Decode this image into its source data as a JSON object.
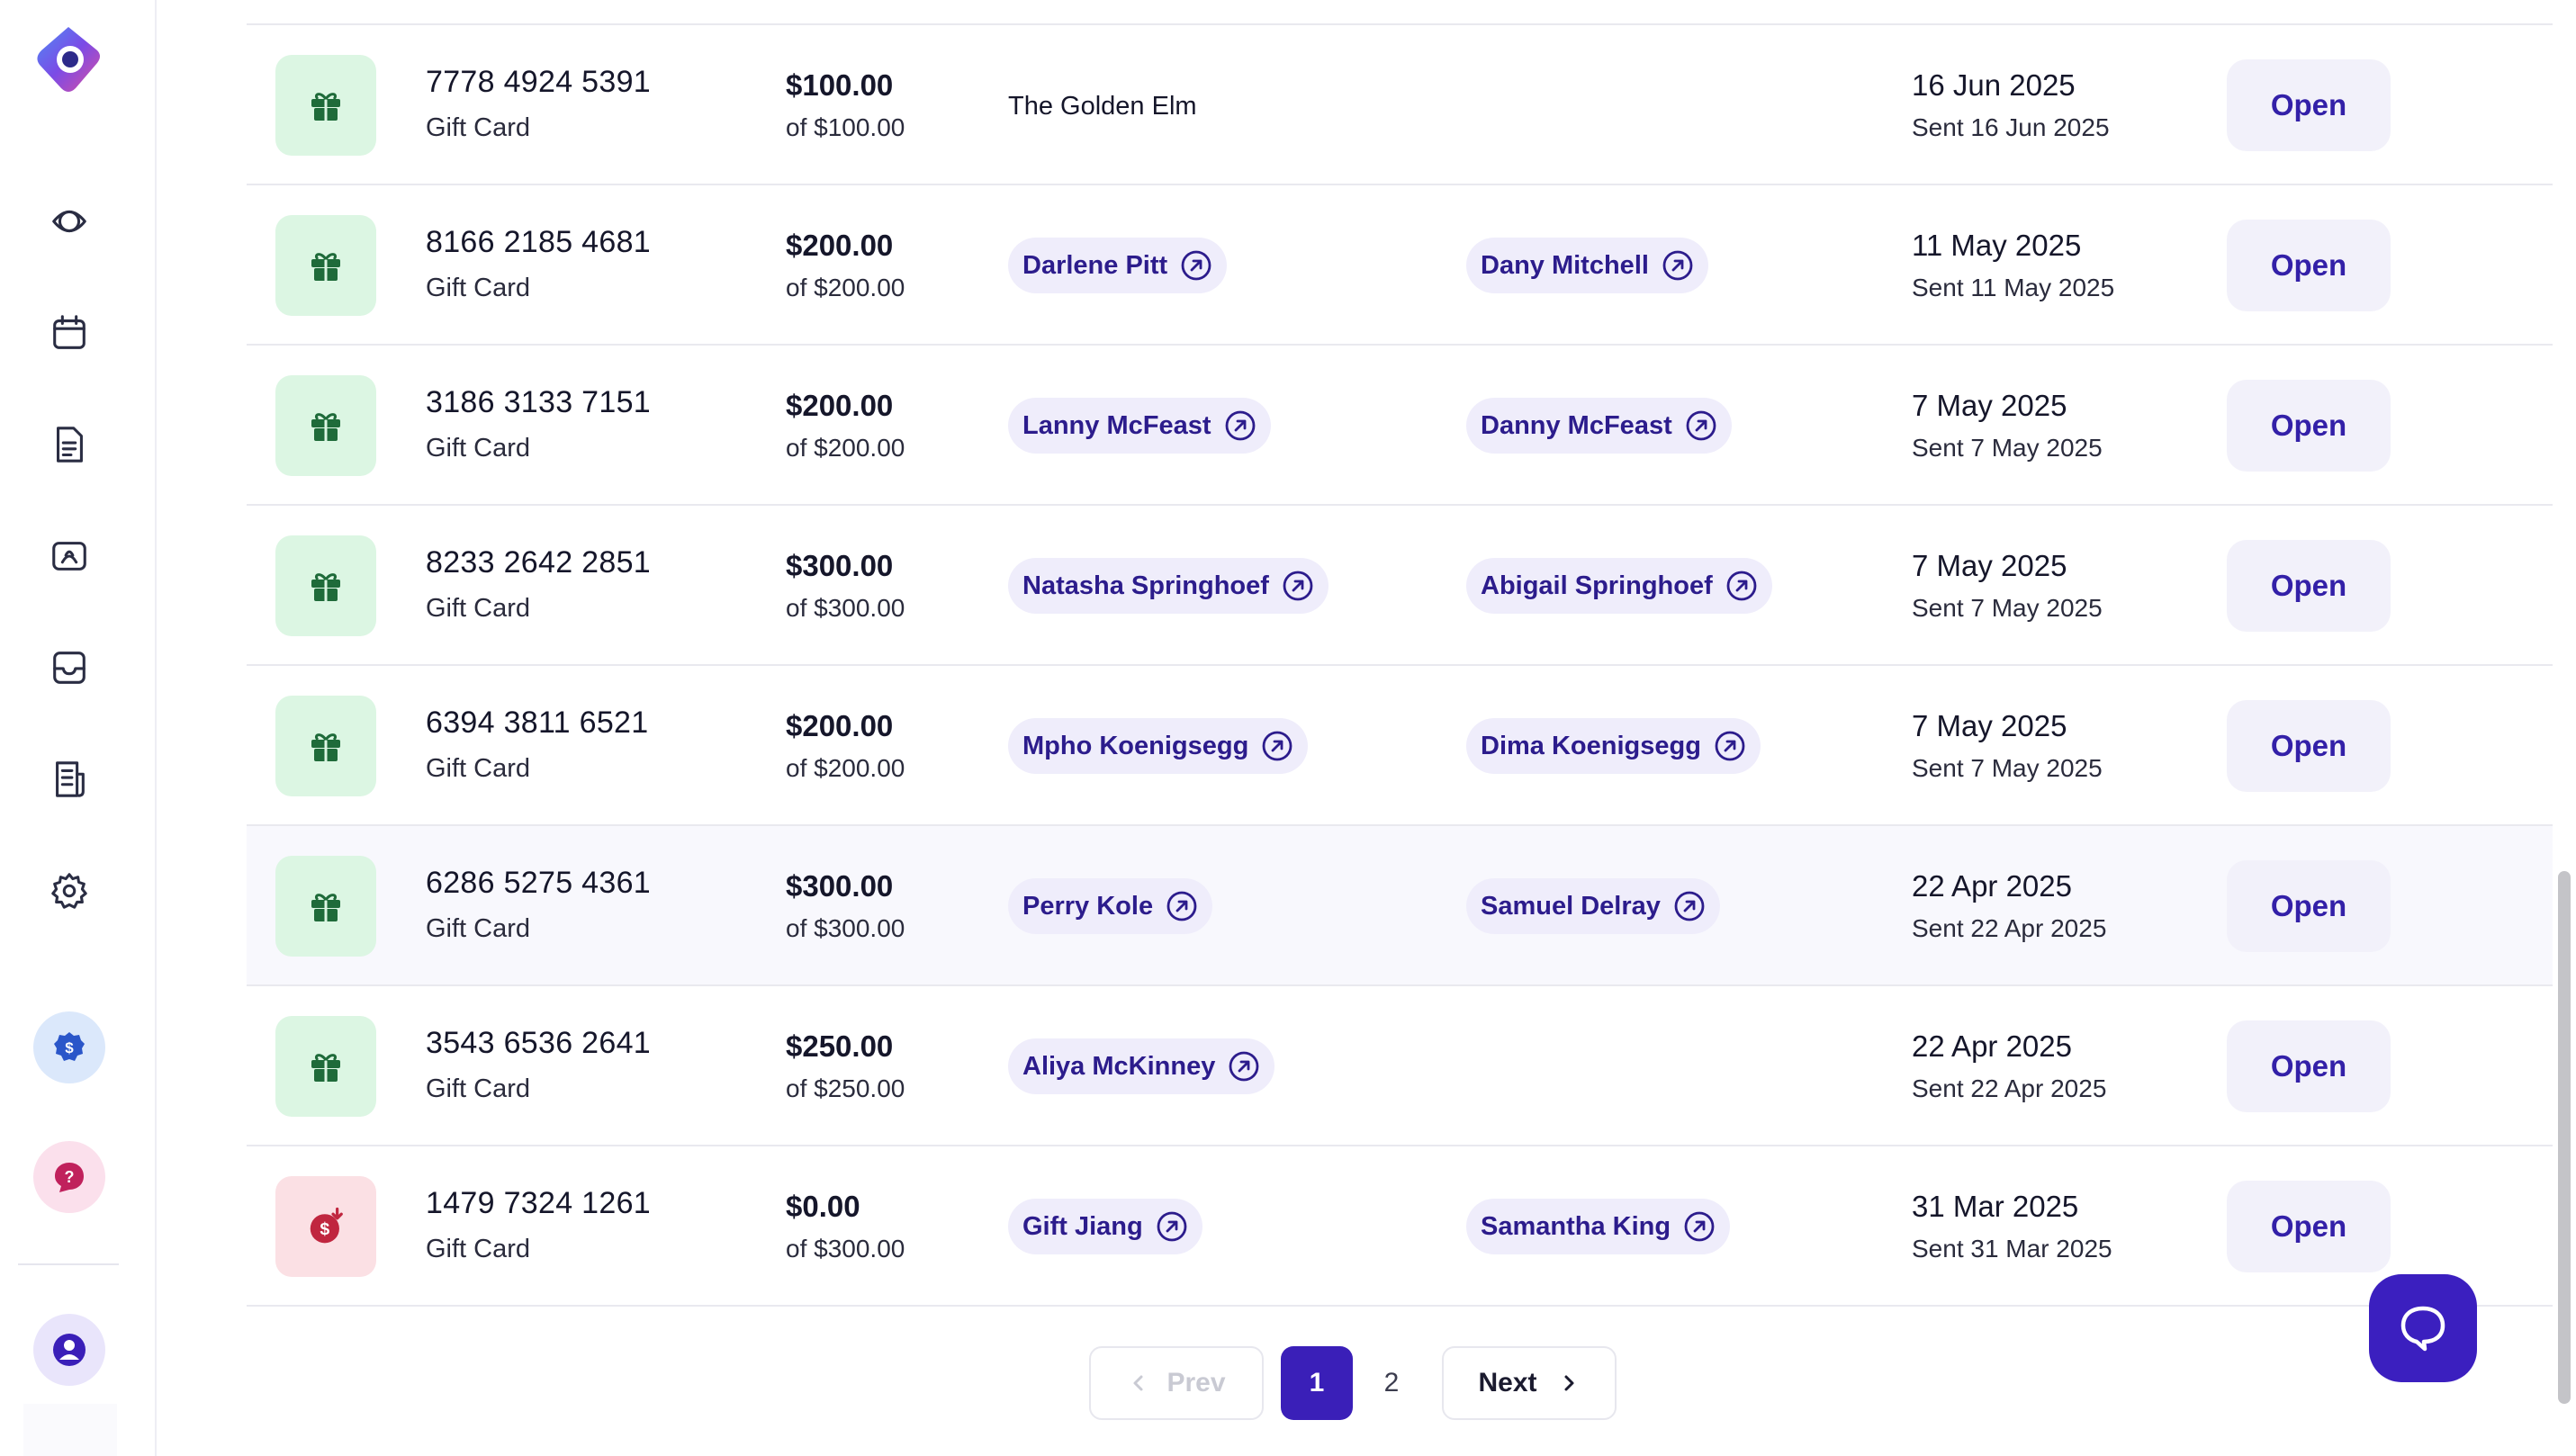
{
  "rows": [
    {
      "card_no": "7778 4924 5391",
      "type": "Gift Card",
      "amount": "$100.00",
      "of": "of $100.00",
      "sender": "The Golden Elm",
      "recipient": "",
      "date": "16 Jun 2025",
      "sent": "Sent 16 Jun 2025",
      "action": "Open",
      "icon": "gift-icon"
    },
    {
      "card_no": "8166 2185 4681",
      "type": "Gift Card",
      "amount": "$200.00",
      "of": "of $200.00",
      "sender": "Darlene Pitt",
      "recipient": "Dany Mitchell",
      "date": "11 May 2025",
      "sent": "Sent 11 May 2025",
      "action": "Open",
      "icon": "gift-icon"
    },
    {
      "card_no": "3186 3133 7151",
      "type": "Gift Card",
      "amount": "$200.00",
      "of": "of $200.00",
      "sender": "Lanny McFeast",
      "recipient": "Danny McFeast",
      "date": "7 May 2025",
      "sent": "Sent 7 May 2025",
      "action": "Open",
      "icon": "gift-icon"
    },
    {
      "card_no": "8233 2642 2851",
      "type": "Gift Card",
      "amount": "$300.00",
      "of": "of $300.00",
      "sender": "Natasha Springhoef",
      "recipient": "Abigail Springhoef",
      "date": "7 May 2025",
      "sent": "Sent 7 May 2025",
      "action": "Open",
      "icon": "gift-icon"
    },
    {
      "card_no": "6394 3811 6521",
      "type": "Gift Card",
      "amount": "$200.00",
      "of": "of $200.00",
      "sender": "Mpho Koenigsegg",
      "recipient": "Dima Koenigsegg",
      "date": "7 May 2025",
      "sent": "Sent 7 May 2025",
      "action": "Open",
      "icon": "gift-icon"
    },
    {
      "card_no": "6286 5275 4361",
      "type": "Gift Card",
      "amount": "$300.00",
      "of": "of $300.00",
      "sender": "Perry Kole",
      "recipient": "Samuel Delray",
      "date": "22 Apr 2025",
      "sent": "Sent 22 Apr 2025",
      "action": "Open",
      "icon": "gift-icon"
    },
    {
      "card_no": "3543 6536 2641",
      "type": "Gift Card",
      "amount": "$250.00",
      "of": "of $250.00",
      "sender": "Aliya McKinney",
      "recipient": "",
      "date": "22 Apr 2025",
      "sent": "Sent 22 Apr 2025",
      "action": "Open",
      "icon": "gift-icon"
    },
    {
      "card_no": "1479 7324 1261",
      "type": "Gift Card",
      "amount": "$0.00",
      "of": "of $300.00",
      "sender": "Gift Jiang",
      "recipient": "Samantha King",
      "date": "31 Mar 2025",
      "sent": "Sent 31 Mar 2025",
      "action": "Open",
      "icon": "dollar-refund-icon"
    }
  ],
  "pagination": {
    "prev": "Prev",
    "next": "Next",
    "pages": [
      "1",
      "2"
    ],
    "current": "1"
  },
  "colors": {
    "accent": "#3a1fb8",
    "chip_bg": "#efedfb",
    "chip_text": "#2c1c8c",
    "gift_tile": "#dcf6e3",
    "gift_icon": "#1f6b3a",
    "refund_tile": "#fbe0e4",
    "refund_icon": "#c0263f"
  },
  "sidebar": {
    "items": [
      "dashboard-icon",
      "calendar-icon",
      "document-icon",
      "clients-icon",
      "inbox-icon",
      "reports-icon",
      "settings-icon"
    ],
    "billing_icon": "dollar-badge-icon",
    "help_icon": "help-icon",
    "profile_icon": "user-icon"
  }
}
